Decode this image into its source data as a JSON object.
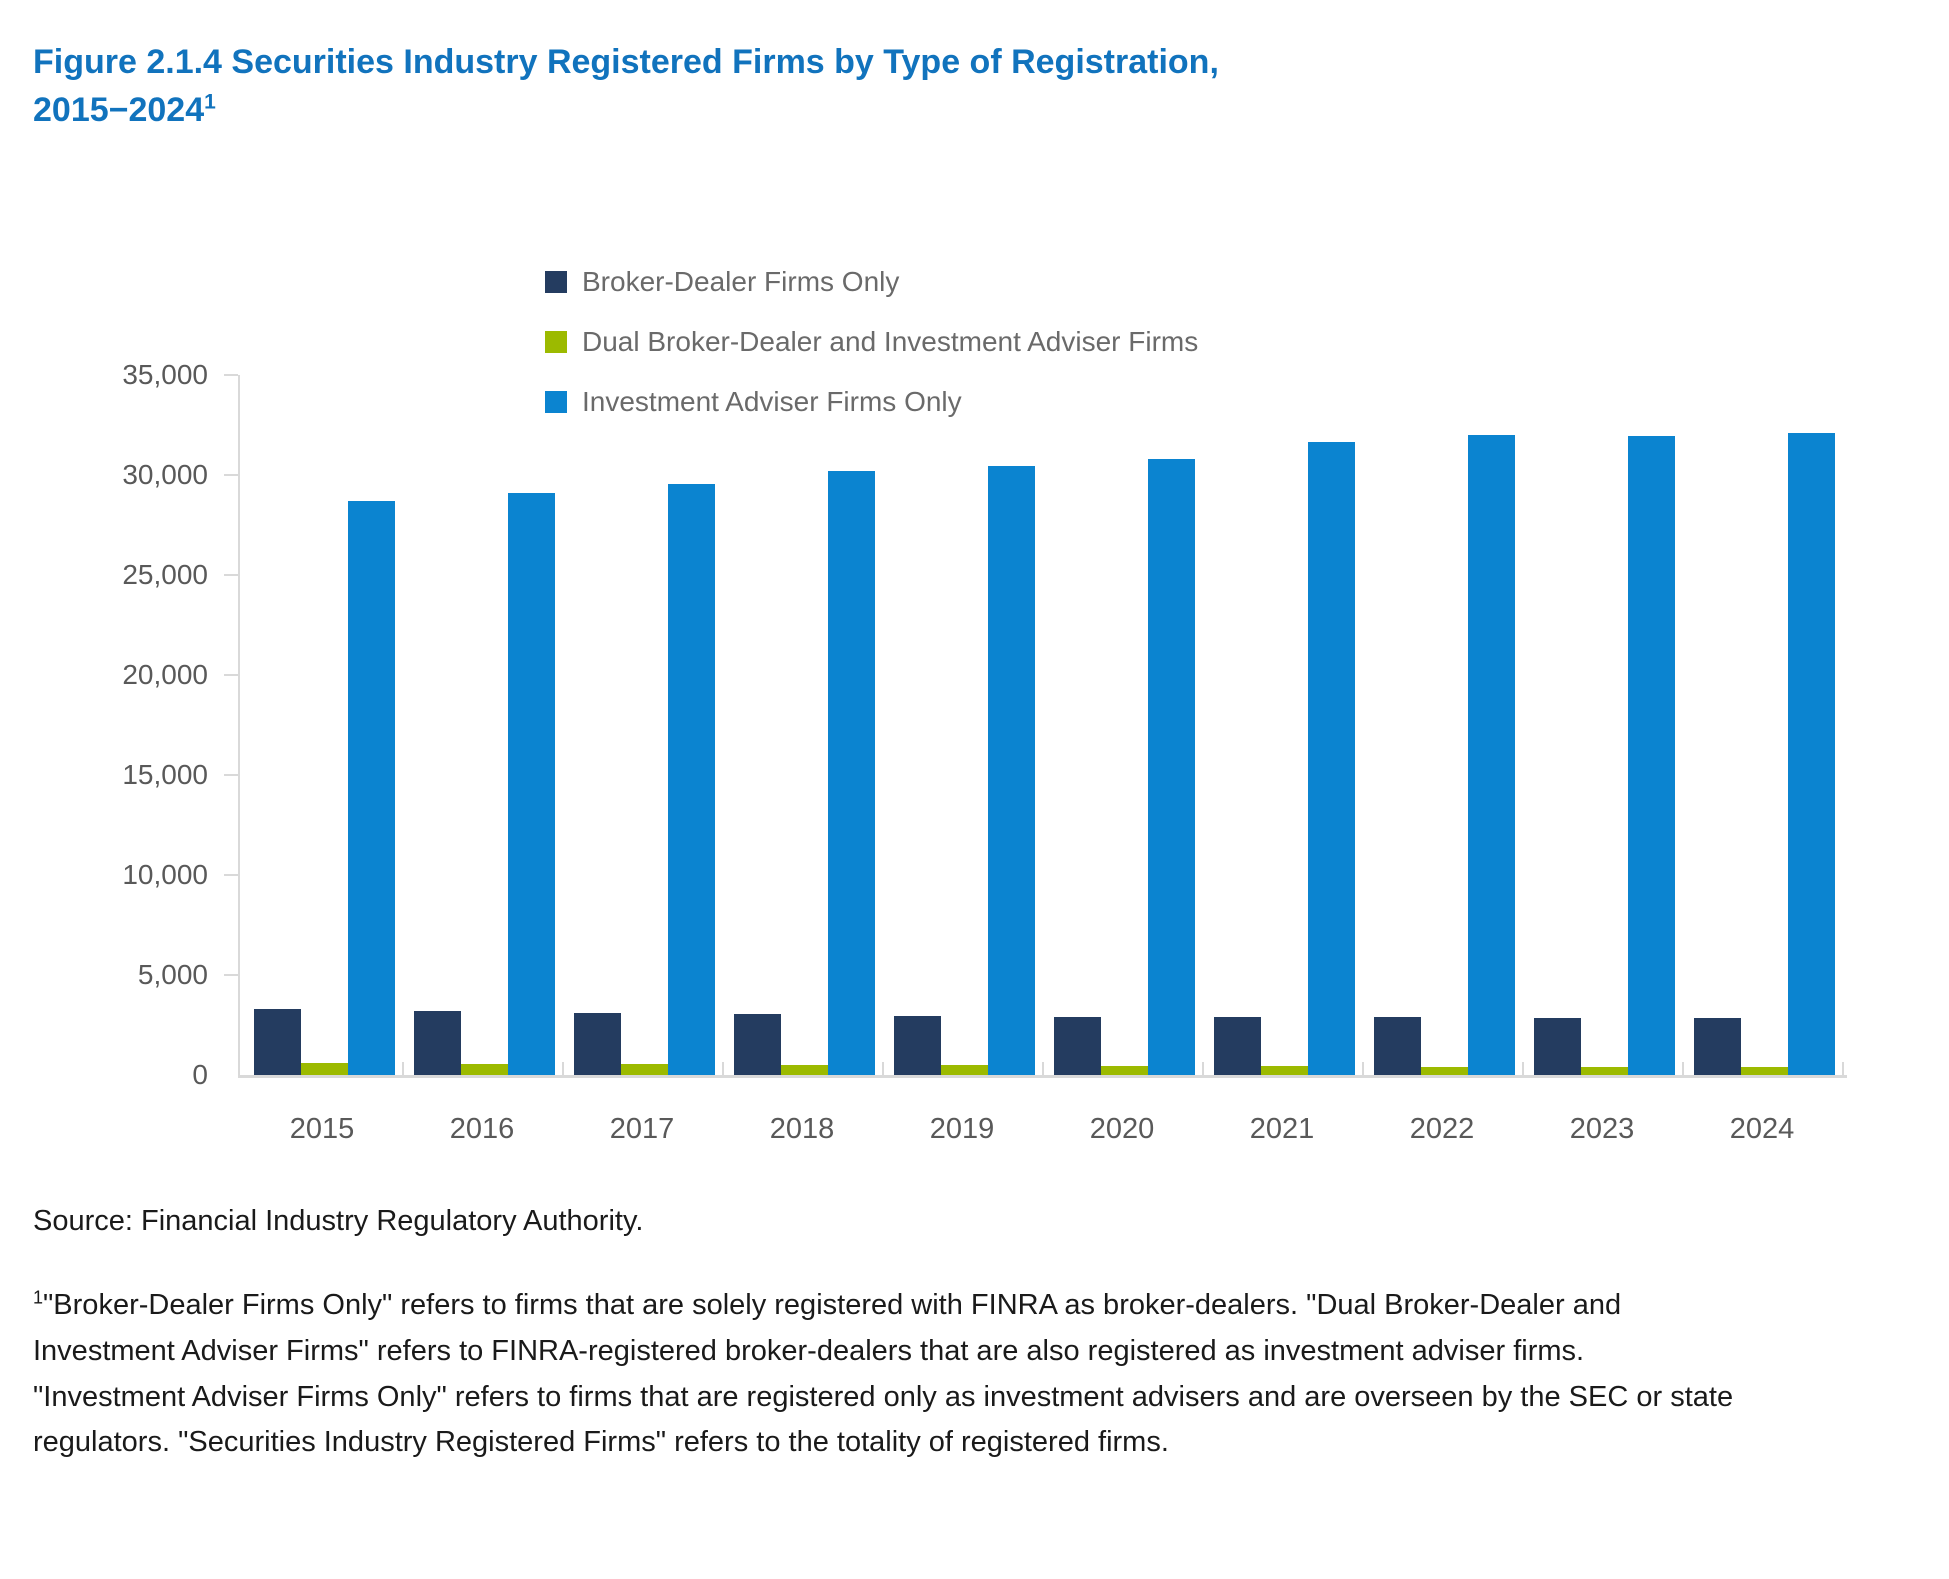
{
  "title": {
    "text": "Figure 2.1.4 Securities Industry Registered Firms by Type of Registration,\n2015−2024",
    "footnote_marker": "1",
    "color": "#1173BD"
  },
  "chart_data": {
    "type": "bar",
    "title": "Securities Industry Registered Firms by Type of Registration, 2015−2024",
    "categories": [
      "2015",
      "2016",
      "2017",
      "2018",
      "2019",
      "2020",
      "2021",
      "2022",
      "2023",
      "2024"
    ],
    "series": [
      {
        "name": "Broker-Dealer Firms Only",
        "color": "#243C60",
        "values": [
          3300,
          3220,
          3120,
          3030,
          2960,
          2900,
          2890,
          2880,
          2850,
          2830
        ]
      },
      {
        "name": "Dual Broker-Dealer and Investment Adviser Firms",
        "color": "#9CBA00",
        "values": [
          610,
          570,
          540,
          505,
          485,
          455,
          435,
          415,
          400,
          390
        ]
      },
      {
        "name": "Investment Adviser Firms Only",
        "color": "#0B84D0",
        "values": [
          28700,
          29100,
          29550,
          30200,
          30450,
          30800,
          31650,
          32000,
          31950,
          32100
        ]
      }
    ],
    "xlabel": "",
    "ylabel": "",
    "ylim": [
      0,
      35000
    ],
    "ytick_interval": 5000,
    "ytick_labels": [
      "0",
      "5,000",
      "10,000",
      "15,000",
      "20,000",
      "25,000",
      "30,000",
      "35,000"
    ],
    "legend_position": "top-center",
    "grid": false,
    "axis_color": "#D9D9D9",
    "tick_label_color": "#595959",
    "legend_text_color": "#6A6A6A"
  },
  "source": "Source: Financial Industry Regulatory Authority.",
  "footnote": {
    "marker": "1",
    "text": "\"Broker-Dealer Firms Only\" refers to firms that are solely registered with FINRA as broker-dealers. \"Dual Broker-Dealer and Investment Adviser Firms\" refers to FINRA-registered broker-dealers that are also registered as investment adviser firms. \"Investment Adviser Firms Only\" refers to firms that are registered only as investment advisers and are overseen by the SEC or state regulators. \"Securities Industry Registered Firms\" refers to the totality of registered firms."
  }
}
